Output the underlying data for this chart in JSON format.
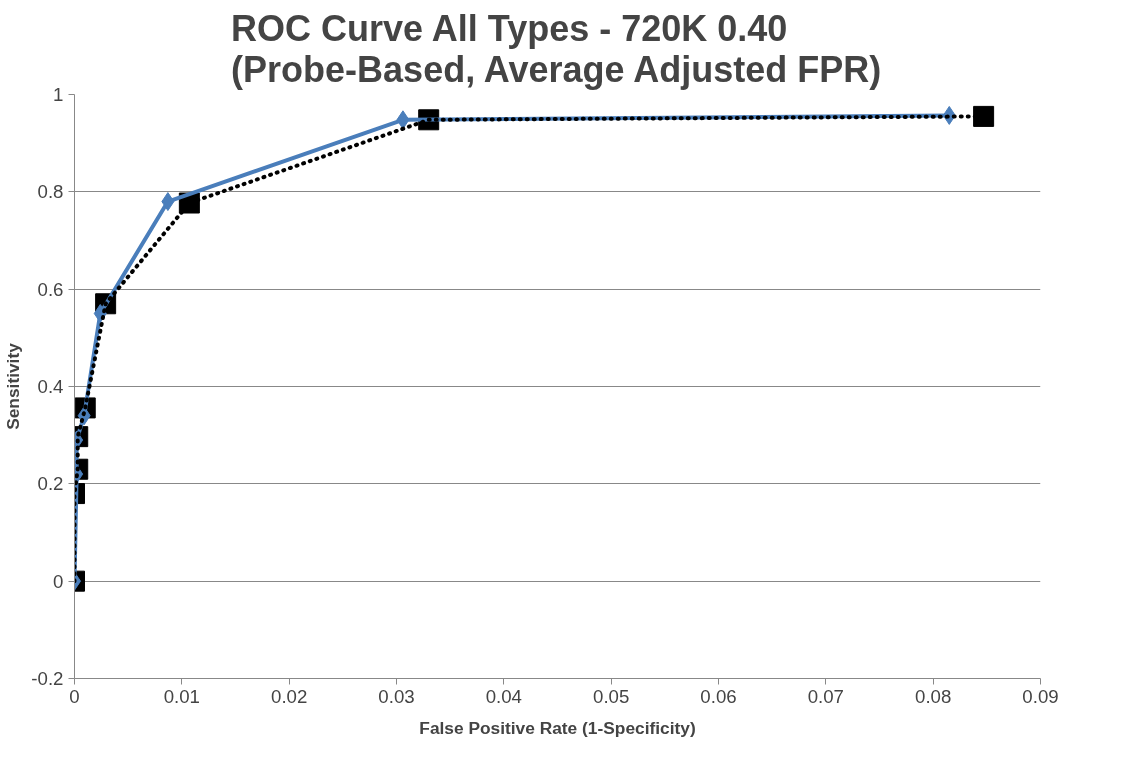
{
  "chart_data": {
    "type": "line",
    "title": "ROC Curve All Types - 720K 0.40\n(Probe-Based, Average Adjusted FPR)",
    "xlabel": "False Positive Rate (1-Specificity)",
    "ylabel": "Sensitivity",
    "xlim": [
      0,
      0.09
    ],
    "ylim": [
      -0.2,
      1
    ],
    "xticks": [
      0,
      0.01,
      0.02,
      0.03,
      0.04,
      0.05,
      0.06,
      0.07,
      0.08,
      0.09
    ],
    "yticks": [
      -0.2,
      0,
      0.2,
      0.4,
      0.6,
      0.8,
      1
    ],
    "grid": "y",
    "series": [
      {
        "color": "#4a7ebb",
        "marker": "diamond",
        "line_style": "solid",
        "x": [
          0,
          0.0002,
          0.0002,
          0.0009,
          0.0024,
          0.0087,
          0.0306,
          0.0815
        ],
        "values": [
          0,
          0.22,
          0.29,
          0.34,
          0.55,
          0.78,
          0.948,
          0.957
        ]
      },
      {
        "color": "#000000",
        "marker": "square",
        "line_style": "dotted",
        "x": [
          0,
          0,
          0.0003,
          0.0003,
          0.001,
          0.0029,
          0.0107,
          0.033,
          0.0847
        ],
        "values": [
          0,
          0.18,
          0.23,
          0.297,
          0.356,
          0.57,
          0.777,
          0.948,
          0.955
        ]
      }
    ]
  }
}
